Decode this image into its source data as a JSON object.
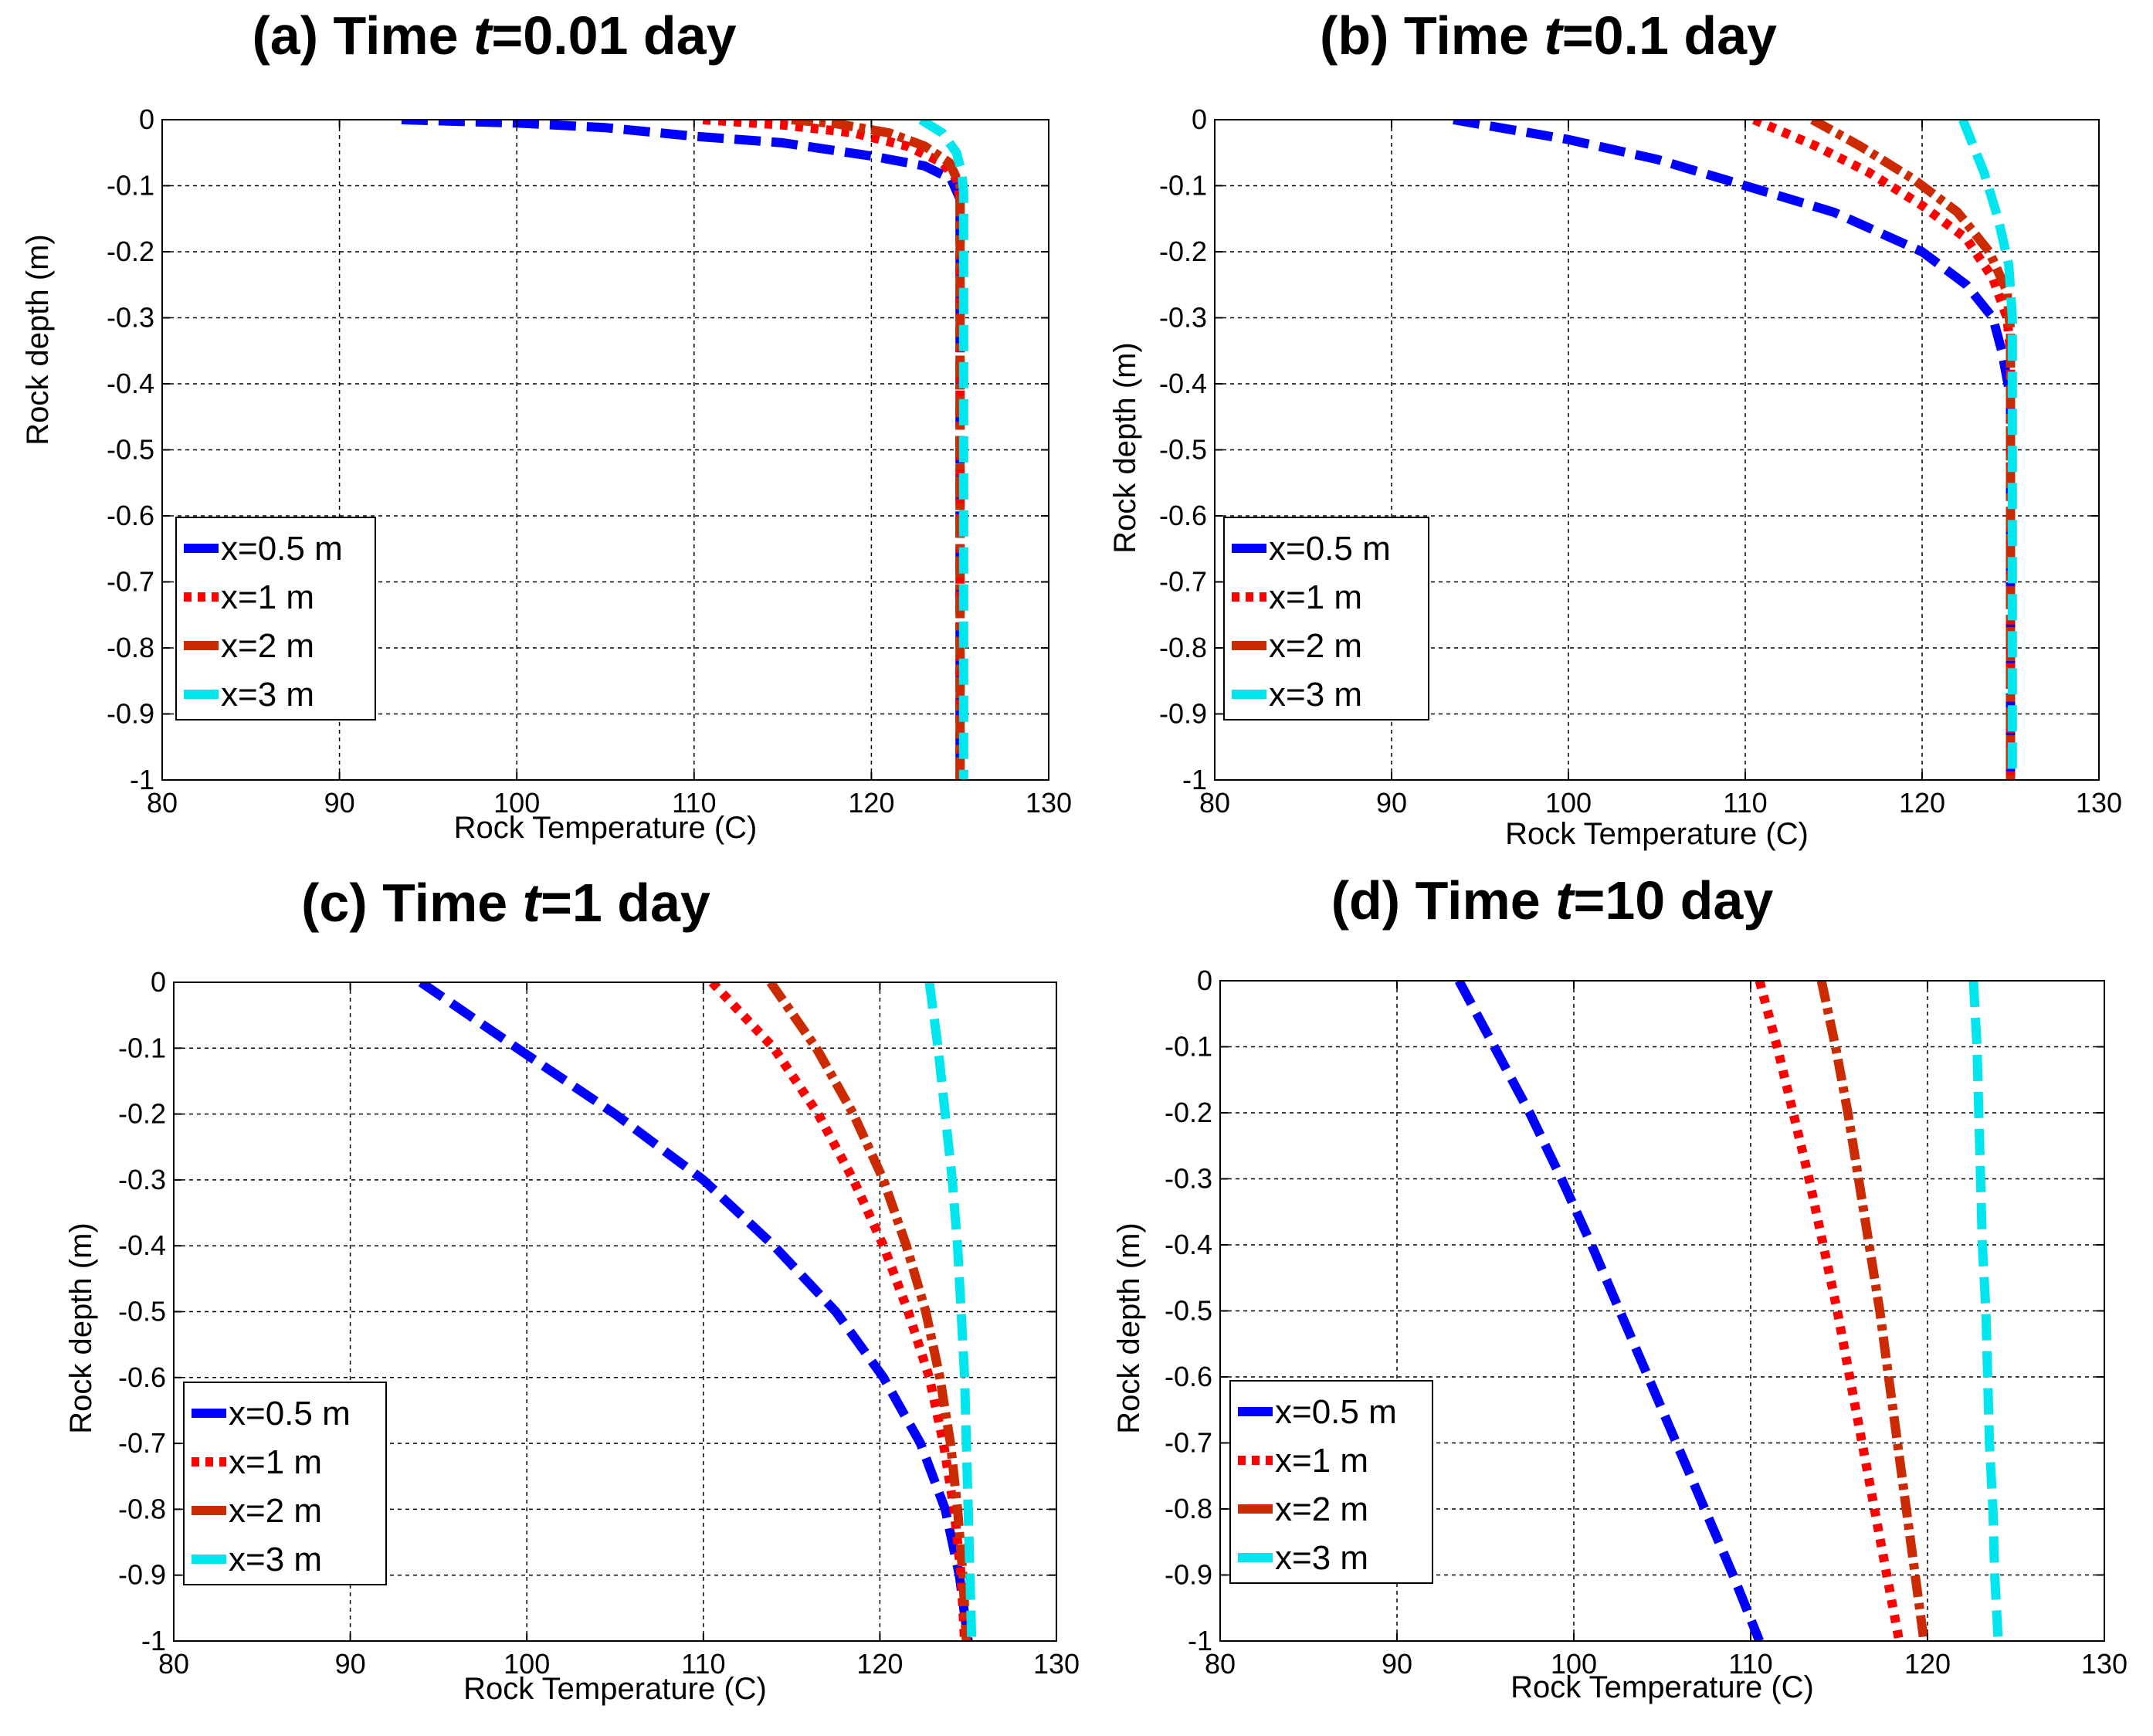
{
  "figure": {
    "panels_count": 4
  },
  "chart_data": [
    {
      "type": "line",
      "panel": "a",
      "title_prefix": "(a) Time ",
      "title_var": "t",
      "title_suffix": "=0.01 day",
      "xlabel": "Rock Temperature (C)",
      "ylabel": "Rock depth (m)",
      "xlim": [
        80,
        130
      ],
      "ylim": [
        -1,
        0
      ],
      "xticks": [
        80,
        90,
        100,
        110,
        120,
        130
      ],
      "yticks": [
        0,
        -0.1,
        -0.2,
        -0.3,
        -0.4,
        -0.5,
        -0.6,
        -0.7,
        -0.8,
        -0.9,
        -1
      ],
      "grid": true,
      "legend_position": "lower-left",
      "series": [
        {
          "name": "x=0.5 m",
          "color": "#0000ff",
          "style": "dashed",
          "points": [
            [
              93.5,
              0
            ],
            [
              100,
              -0.005
            ],
            [
              105,
              -0.012
            ],
            [
              110,
              -0.025
            ],
            [
              115,
              -0.035
            ],
            [
              120,
              -0.055
            ],
            [
              123,
              -0.07
            ],
            [
              124.5,
              -0.09
            ],
            [
              125,
              -0.12
            ],
            [
              125,
              -1
            ]
          ]
        },
        {
          "name": "x=1 m",
          "color": "#ff0000",
          "style": "dotted",
          "points": [
            [
              110.5,
              0
            ],
            [
              115,
              -0.008
            ],
            [
              119,
              -0.02
            ],
            [
              122,
              -0.04
            ],
            [
              124,
              -0.065
            ],
            [
              124.8,
              -0.09
            ],
            [
              125,
              -0.12
            ],
            [
              125,
              -1
            ]
          ]
        },
        {
          "name": "x=2 m",
          "color": "#cc2a00",
          "style": "dashdot",
          "points": [
            [
              115.5,
              0
            ],
            [
              118,
              -0.006
            ],
            [
              121,
              -0.02
            ],
            [
              123,
              -0.04
            ],
            [
              124.4,
              -0.065
            ],
            [
              125,
              -0.1
            ],
            [
              125,
              -1
            ]
          ]
        },
        {
          "name": "x=3 m",
          "color": "#00e6ee",
          "style": "dashed",
          "points": [
            [
              122.8,
              0
            ],
            [
              124,
              -0.02
            ],
            [
              124.8,
              -0.05
            ],
            [
              125.1,
              -0.08
            ],
            [
              125.2,
              -0.11
            ],
            [
              125.2,
              -1
            ]
          ]
        }
      ]
    },
    {
      "type": "line",
      "panel": "b",
      "title_prefix": "(b) Time ",
      "title_var": "t",
      "title_suffix": "=0.1 day",
      "xlabel": "Rock Temperature (C)",
      "ylabel": "Rock depth (m)",
      "xlim": [
        80,
        130
      ],
      "ylim": [
        -1,
        0
      ],
      "xticks": [
        80,
        90,
        100,
        110,
        120,
        130
      ],
      "yticks": [
        0,
        -0.1,
        -0.2,
        -0.3,
        -0.4,
        -0.5,
        -0.6,
        -0.7,
        -0.8,
        -0.9,
        -1
      ],
      "grid": true,
      "legend_position": "lower-left",
      "series": [
        {
          "name": "x=0.5 m",
          "color": "#0000ff",
          "style": "dashed",
          "points": [
            [
              93.5,
              0
            ],
            [
              100,
              -0.03
            ],
            [
              105,
              -0.06
            ],
            [
              110,
              -0.1
            ],
            [
              115,
              -0.14
            ],
            [
              120,
              -0.2
            ],
            [
              122.5,
              -0.25
            ],
            [
              124,
              -0.3
            ],
            [
              124.5,
              -0.35
            ],
            [
              125,
              -0.42
            ],
            [
              125,
              -1
            ]
          ]
        },
        {
          "name": "x=1 m",
          "color": "#ff0000",
          "style": "dotted",
          "points": [
            [
              110.5,
              0
            ],
            [
              114,
              -0.04
            ],
            [
              117,
              -0.08
            ],
            [
              120,
              -0.13
            ],
            [
              122.5,
              -0.18
            ],
            [
              124,
              -0.24
            ],
            [
              124.8,
              -0.3
            ],
            [
              125,
              -0.35
            ],
            [
              125,
              -1
            ]
          ]
        },
        {
          "name": "x=2 m",
          "color": "#cc2a00",
          "style": "dashdot",
          "points": [
            [
              113.8,
              0
            ],
            [
              116.5,
              -0.04
            ],
            [
              119.5,
              -0.09
            ],
            [
              122,
              -0.14
            ],
            [
              123.8,
              -0.2
            ],
            [
              124.8,
              -0.26
            ],
            [
              125,
              -0.32
            ],
            [
              125,
              -1
            ]
          ]
        },
        {
          "name": "x=3 m",
          "color": "#00e6ee",
          "style": "dashed",
          "points": [
            [
              122.3,
              0
            ],
            [
              123.5,
              -0.08
            ],
            [
              124.3,
              -0.15
            ],
            [
              124.9,
              -0.22
            ],
            [
              125.1,
              -0.3
            ],
            [
              125.1,
              -1
            ]
          ]
        }
      ]
    },
    {
      "type": "line",
      "panel": "c",
      "title_prefix": "(c) Time ",
      "title_var": "t",
      "title_suffix": "=1 day",
      "xlabel": "Rock Temperature (C)",
      "ylabel": "Rock depth (m)",
      "xlim": [
        80,
        130
      ],
      "ylim": [
        -1,
        0
      ],
      "xticks": [
        80,
        90,
        100,
        110,
        120,
        130
      ],
      "yticks": [
        0,
        -0.1,
        -0.2,
        -0.3,
        -0.4,
        -0.5,
        -0.6,
        -0.7,
        -0.8,
        -0.9,
        -1
      ],
      "grid": true,
      "legend_position": "lower-left",
      "series": [
        {
          "name": "x=0.5 m",
          "color": "#0000ff",
          "style": "dashed",
          "points": [
            [
              94,
              0
            ],
            [
              100,
              -0.11
            ],
            [
              105,
              -0.2
            ],
            [
              110,
              -0.3
            ],
            [
              114,
              -0.4
            ],
            [
              117.5,
              -0.5
            ],
            [
              120.2,
              -0.6
            ],
            [
              122.3,
              -0.7
            ],
            [
              123.7,
              -0.8
            ],
            [
              124.5,
              -0.9
            ],
            [
              125,
              -1
            ]
          ]
        },
        {
          "name": "x=1 m",
          "color": "#ff0000",
          "style": "dotted",
          "points": [
            [
              110.5,
              0
            ],
            [
              114,
              -0.1
            ],
            [
              116.5,
              -0.2
            ],
            [
              118.5,
              -0.3
            ],
            [
              120.2,
              -0.4
            ],
            [
              121.6,
              -0.5
            ],
            [
              122.8,
              -0.6
            ],
            [
              123.6,
              -0.7
            ],
            [
              124.2,
              -0.8
            ],
            [
              124.6,
              -0.9
            ],
            [
              124.8,
              -1
            ]
          ]
        },
        {
          "name": "x=2 m",
          "color": "#cc2a00",
          "style": "dashdot",
          "points": [
            [
              113.8,
              0
            ],
            [
              116.4,
              -0.1
            ],
            [
              118.5,
              -0.2
            ],
            [
              120.2,
              -0.3
            ],
            [
              121.5,
              -0.4
            ],
            [
              122.6,
              -0.5
            ],
            [
              123.4,
              -0.6
            ],
            [
              124,
              -0.7
            ],
            [
              124.4,
              -0.8
            ],
            [
              124.7,
              -0.9
            ],
            [
              124.9,
              -1
            ]
          ]
        },
        {
          "name": "x=3 m",
          "color": "#00e6ee",
          "style": "dashed",
          "points": [
            [
              122.8,
              0
            ],
            [
              123.3,
              -0.1
            ],
            [
              123.7,
              -0.2
            ],
            [
              124.1,
              -0.3
            ],
            [
              124.4,
              -0.4
            ],
            [
              124.6,
              -0.5
            ],
            [
              124.8,
              -0.6
            ],
            [
              124.9,
              -0.7
            ],
            [
              125,
              -0.8
            ],
            [
              125.1,
              -0.9
            ],
            [
              125.2,
              -1
            ]
          ]
        }
      ]
    },
    {
      "type": "line",
      "panel": "d",
      "title_prefix": "(d) Time ",
      "title_var": "t",
      "title_suffix": "=10 day",
      "xlabel": "Rock Temperature (C)",
      "ylabel": "Rock depth (m)",
      "xlim": [
        80,
        130
      ],
      "ylim": [
        -1,
        0
      ],
      "xticks": [
        80,
        90,
        100,
        110,
        120,
        130
      ],
      "yticks": [
        0,
        -0.1,
        -0.2,
        -0.3,
        -0.4,
        -0.5,
        -0.6,
        -0.7,
        -0.8,
        -0.9,
        -1
      ],
      "grid": true,
      "legend_position": "lower-left",
      "series": [
        {
          "name": "x=0.5 m",
          "color": "#0000ff",
          "style": "dashed",
          "points": [
            [
              93.5,
              0
            ],
            [
              95.5,
              -0.1
            ],
            [
              97.5,
              -0.2
            ],
            [
              99.3,
              -0.3
            ],
            [
              101,
              -0.4
            ],
            [
              102.6,
              -0.5
            ],
            [
              104.2,
              -0.6
            ],
            [
              105.8,
              -0.7
            ],
            [
              107.4,
              -0.8
            ],
            [
              109,
              -0.9
            ],
            [
              110.5,
              -1
            ]
          ]
        },
        {
          "name": "x=1 m",
          "color": "#ff0000",
          "style": "dotted",
          "points": [
            [
              110.5,
              0
            ],
            [
              111.5,
              -0.1
            ],
            [
              112.4,
              -0.2
            ],
            [
              113.3,
              -0.3
            ],
            [
              114.1,
              -0.4
            ],
            [
              114.9,
              -0.5
            ],
            [
              115.6,
              -0.6
            ],
            [
              116.3,
              -0.7
            ],
            [
              117,
              -0.8
            ],
            [
              117.7,
              -0.9
            ],
            [
              118.4,
              -1
            ]
          ]
        },
        {
          "name": "x=2 m",
          "color": "#cc2a00",
          "style": "dashdot",
          "points": [
            [
              114,
              0
            ],
            [
              114.8,
              -0.1
            ],
            [
              115.5,
              -0.2
            ],
            [
              116.1,
              -0.3
            ],
            [
              116.7,
              -0.4
            ],
            [
              117.3,
              -0.5
            ],
            [
              117.8,
              -0.6
            ],
            [
              118.3,
              -0.7
            ],
            [
              118.8,
              -0.8
            ],
            [
              119.3,
              -0.9
            ],
            [
              119.8,
              -1
            ]
          ]
        },
        {
          "name": "x=3 m",
          "color": "#00e6ee",
          "style": "dashed",
          "points": [
            [
              122.6,
              0
            ],
            [
              122.8,
              -0.1
            ],
            [
              122.9,
              -0.2
            ],
            [
              123,
              -0.3
            ],
            [
              123.1,
              -0.4
            ],
            [
              123.3,
              -0.5
            ],
            [
              123.4,
              -0.6
            ],
            [
              123.5,
              -0.7
            ],
            [
              123.7,
              -0.8
            ],
            [
              123.8,
              -0.9
            ],
            [
              124,
              -1
            ]
          ]
        }
      ]
    }
  ]
}
